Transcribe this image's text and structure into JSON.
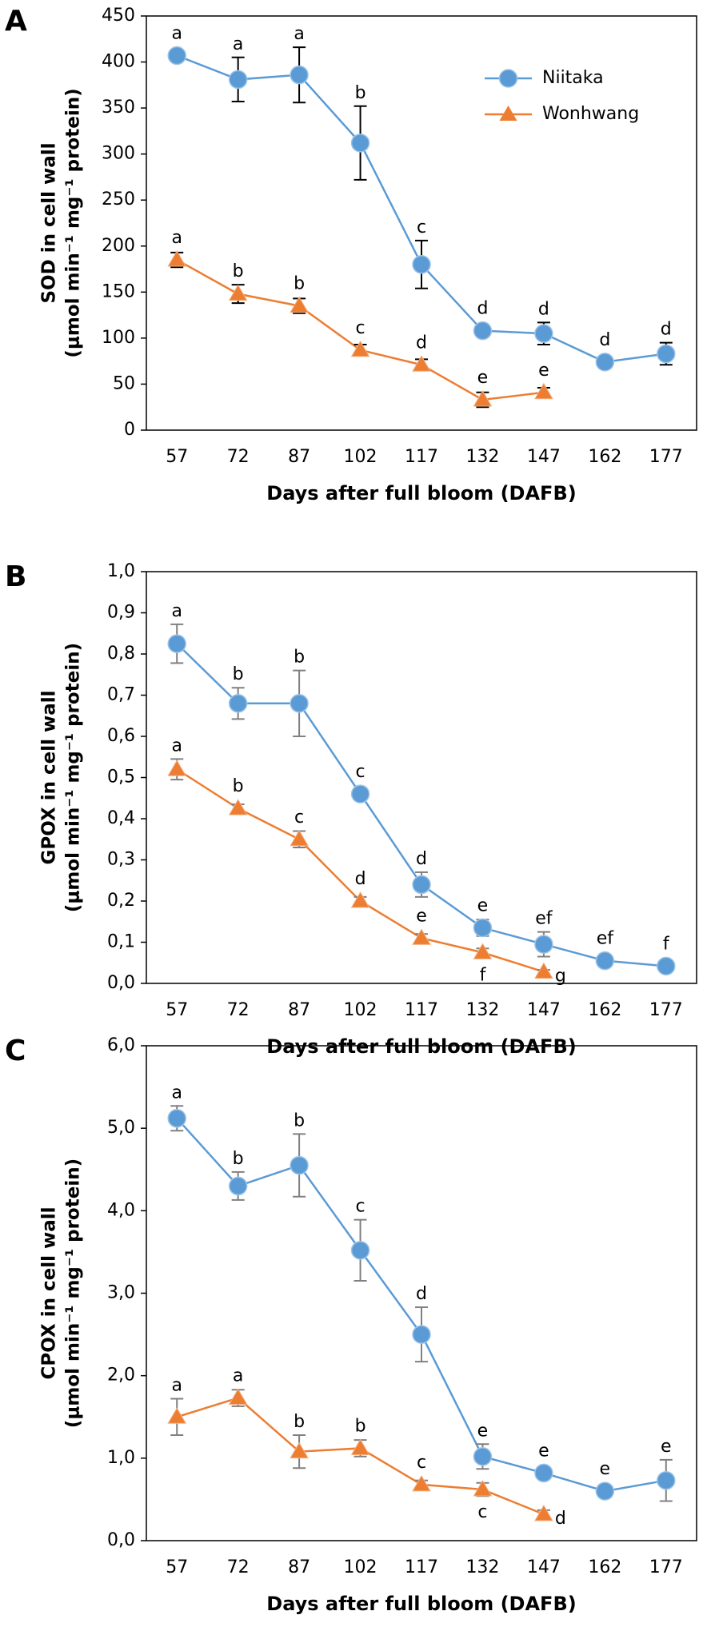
{
  "chart_data": [
    {
      "type": "line",
      "panel_label": "A",
      "ylabel": [
        "SOD in cell wall",
        "(μmol min⁻¹ mg⁻¹ protein)"
      ],
      "xlabel": "Days after full bloom (DAFB)",
      "categories": [
        "57",
        "72",
        "87",
        "102",
        "117",
        "132",
        "147",
        "162",
        "177"
      ],
      "ylim": [
        0,
        450
      ],
      "yticks": [
        0,
        50,
        100,
        150,
        200,
        250,
        300,
        350,
        400,
        450
      ],
      "error_color": "#000000",
      "legend": "upper right",
      "series": [
        {
          "name": "Niitaka",
          "color": "#5b9bd5",
          "marker": "circle",
          "values": [
            407,
            381,
            386,
            312,
            180,
            108,
            105,
            74,
            83
          ],
          "errors": [
            3,
            24,
            30,
            40,
            26,
            5,
            12,
            3,
            12
          ],
          "letters": [
            "a",
            "a",
            "a",
            "b",
            "c",
            "d",
            "d",
            "d",
            "d"
          ]
        },
        {
          "name": "Wonhwang",
          "color": "#ed7d31",
          "marker": "triangle",
          "values": [
            185,
            148,
            135,
            87,
            71,
            33,
            41,
            null,
            null
          ],
          "errors": [
            8,
            10,
            8,
            6,
            6,
            8,
            5,
            null,
            null
          ],
          "letters": [
            "a",
            "b",
            "b",
            "c",
            "d",
            "e",
            "e",
            null,
            null
          ]
        }
      ]
    },
    {
      "type": "line",
      "panel_label": "B",
      "ylabel": [
        "GPOX in cell wall",
        "(μmol min⁻¹ mg⁻¹ protein)"
      ],
      "xlabel": "Days after full bloom (DAFB)",
      "categories": [
        "57",
        "72",
        "87",
        "102",
        "117",
        "132",
        "147",
        "162",
        "177"
      ],
      "ylim": [
        0,
        1
      ],
      "yticks": [
        {
          "value": 0,
          "label": "0,0"
        },
        {
          "value": 0.1,
          "label": "0,1"
        },
        {
          "value": 0.2,
          "label": "0,2"
        },
        {
          "value": 0.3,
          "label": "0,3"
        },
        {
          "value": 0.4,
          "label": "0,4"
        },
        {
          "value": 0.5,
          "label": "0,5"
        },
        {
          "value": 0.6,
          "label": "0,6"
        },
        {
          "value": 0.7,
          "label": "0,7"
        },
        {
          "value": 0.8,
          "label": "0,8"
        },
        {
          "value": 0.9,
          "label": "0,9"
        },
        {
          "value": 1,
          "label": "1,0"
        }
      ],
      "error_color": "#808080",
      "series": [
        {
          "color": "#5b9bd5",
          "marker": "circle",
          "values": [
            0.825,
            0.68,
            0.68,
            0.46,
            0.24,
            0.135,
            0.095,
            0.055,
            0.042
          ],
          "errors": [
            0.047,
            0.038,
            0.08,
            0.01,
            0.03,
            0.02,
            0.03,
            0.01,
            0.005
          ],
          "letters": [
            "a",
            "b",
            "b",
            "c",
            "d",
            "e",
            "ef",
            "ef",
            "f"
          ]
        },
        {
          "color": "#ed7d31",
          "marker": "triangle",
          "values": [
            0.52,
            0.425,
            0.35,
            0.2,
            0.11,
            0.075,
            0.028,
            null,
            null
          ],
          "errors": [
            0.025,
            0.01,
            0.02,
            0.01,
            0.01,
            0.01,
            0.005,
            null,
            null
          ],
          "letters": [
            "a",
            "b",
            "c",
            "d",
            "e",
            "f",
            "g",
            null,
            null
          ]
        }
      ]
    },
    {
      "type": "line",
      "panel_label": "C",
      "ylabel": [
        "CPOX in cell wall",
        "(μmol min⁻¹ mg⁻¹ protein)"
      ],
      "xlabel": "Days after full bloom (DAFB)",
      "categories": [
        "57",
        "72",
        "87",
        "102",
        "117",
        "132",
        "147",
        "162",
        "177"
      ],
      "ylim": [
        0,
        6
      ],
      "yticks": [
        {
          "value": 0,
          "label": "0,0"
        },
        {
          "value": 1,
          "label": "1,0"
        },
        {
          "value": 2,
          "label": "2,0"
        },
        {
          "value": 3,
          "label": "3,0"
        },
        {
          "value": 4,
          "label": "4,0"
        },
        {
          "value": 5,
          "label": "5,0"
        },
        {
          "value": 6,
          "label": "6,0"
        }
      ],
      "error_color": "#808080",
      "series": [
        {
          "color": "#5b9bd5",
          "marker": "circle",
          "values": [
            5.12,
            4.3,
            4.55,
            3.52,
            2.5,
            1.02,
            0.82,
            0.6,
            0.73
          ],
          "errors": [
            0.15,
            0.17,
            0.38,
            0.37,
            0.33,
            0.15,
            0.07,
            0.05,
            0.25
          ],
          "letters": [
            "a",
            "b",
            "b",
            "c",
            "d",
            "e",
            "e",
            "e",
            "e"
          ]
        },
        {
          "color": "#ed7d31",
          "marker": "triangle",
          "values": [
            1.5,
            1.73,
            1.08,
            1.12,
            0.68,
            0.62,
            0.32,
            null,
            null
          ],
          "errors": [
            0.22,
            0.1,
            0.2,
            0.1,
            0.05,
            0.08,
            0.05,
            null,
            null
          ],
          "letters": [
            "a",
            "a",
            "b",
            "b",
            "c",
            "c",
            "d",
            null,
            null
          ]
        }
      ]
    }
  ]
}
